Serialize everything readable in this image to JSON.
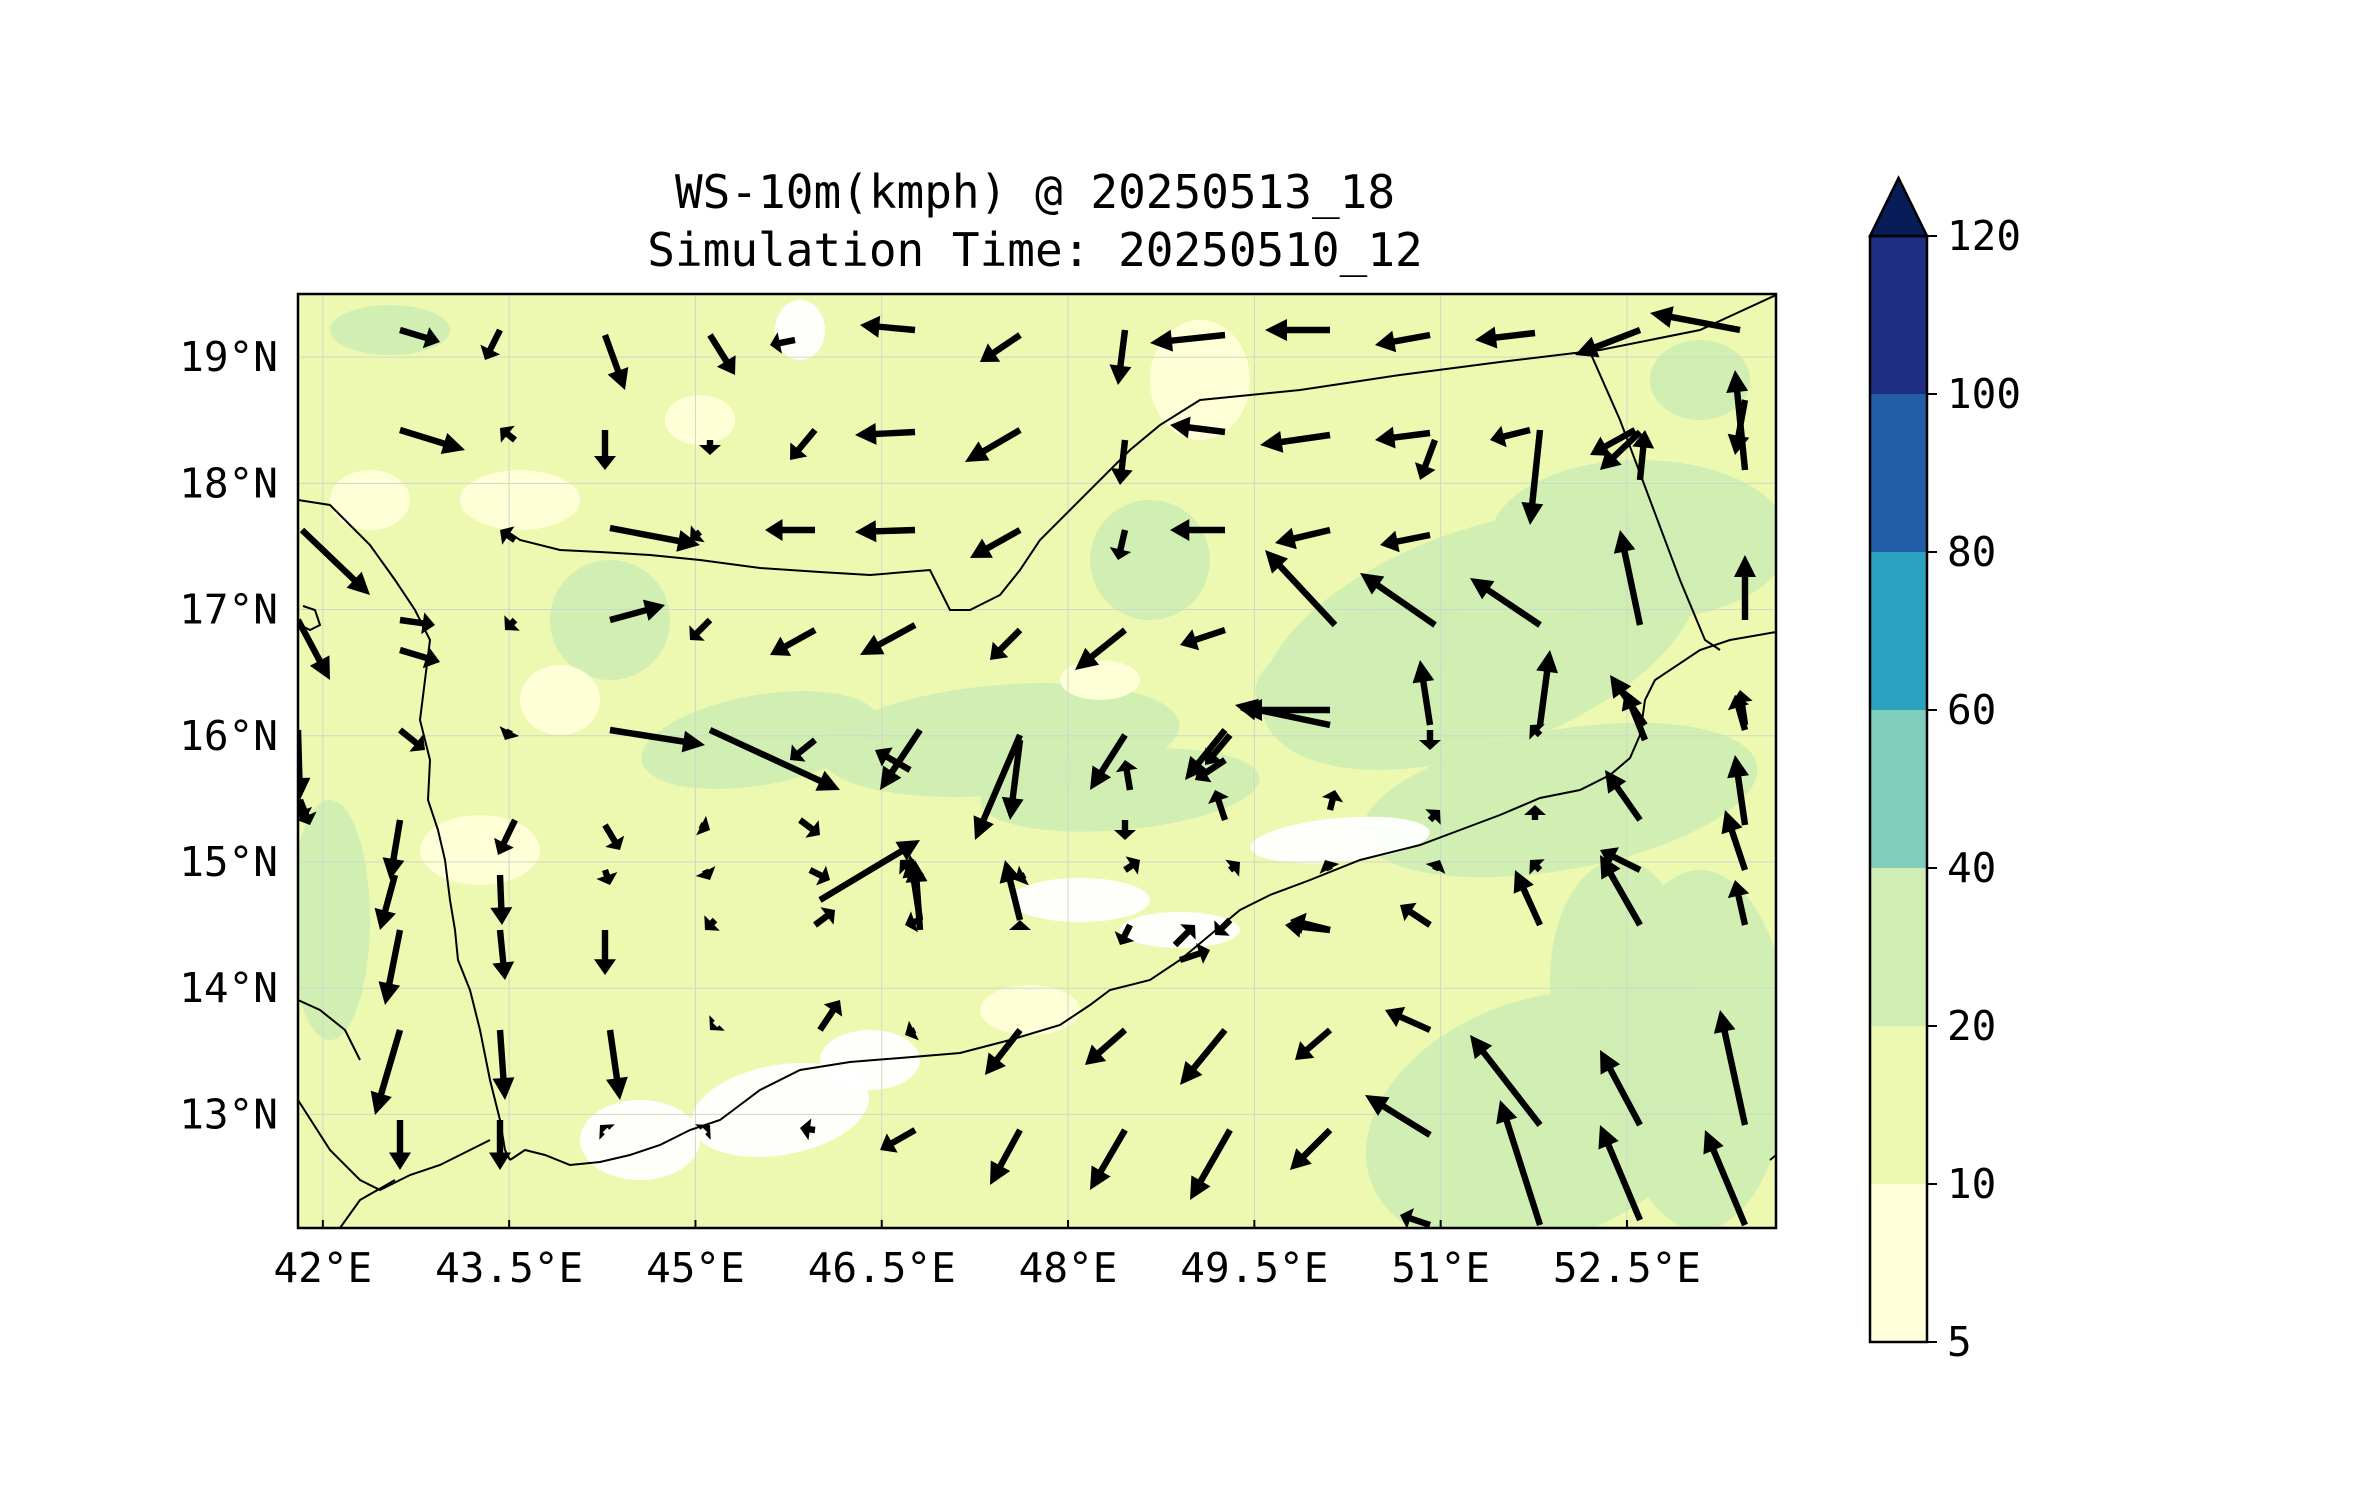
{
  "title": {
    "line1": "WS-10m(kmph) @ 20250513_18",
    "line2": "Simulation Time: 20250510_12"
  },
  "map": {
    "lon_range": [
      41.8,
      53.7
    ],
    "lat_range": [
      12.1,
      19.5
    ],
    "lon_ticks": [
      {
        "value": 42.0,
        "label": "42°E"
      },
      {
        "value": 43.5,
        "label": "43.5°E"
      },
      {
        "value": 45.0,
        "label": "45°E"
      },
      {
        "value": 46.5,
        "label": "46.5°E"
      },
      {
        "value": 48.0,
        "label": "48°E"
      },
      {
        "value": 49.5,
        "label": "49.5°E"
      },
      {
        "value": 51.0,
        "label": "51°E"
      },
      {
        "value": 52.5,
        "label": "52.5°E"
      }
    ],
    "lat_ticks": [
      {
        "value": 19,
        "label": "19°N"
      },
      {
        "value": 18,
        "label": "18°N"
      },
      {
        "value": 17,
        "label": "17°N"
      },
      {
        "value": 16,
        "label": "16°N"
      },
      {
        "value": 15,
        "label": "15°N"
      },
      {
        "value": 14,
        "label": "14°N"
      },
      {
        "value": 13,
        "label": "13°N"
      }
    ],
    "field_colors": {
      "5-10": "#ffffd9",
      "10-20": "#edf8b1",
      "20-40": "#d0edb3",
      "40-60": "#7fcdbb",
      "60-80": "#2ca2c0",
      "80-100": "#225ea8",
      "100-120": "#1d2e83",
      "over": "#081d58",
      "under": "#ffffff"
    }
  },
  "colorbar": {
    "levels": [
      5,
      10,
      20,
      40,
      60,
      80,
      100,
      120
    ],
    "colors": [
      "#ffffd9",
      "#edf8b1",
      "#d0edb3",
      "#7fcdbb",
      "#2ca2c0",
      "#225ea8",
      "#1d2e83"
    ],
    "extend_color": "#081d58",
    "tick_labels": [
      "5",
      "10",
      "20",
      "40",
      "60",
      "80",
      "100",
      "120"
    ]
  }
}
